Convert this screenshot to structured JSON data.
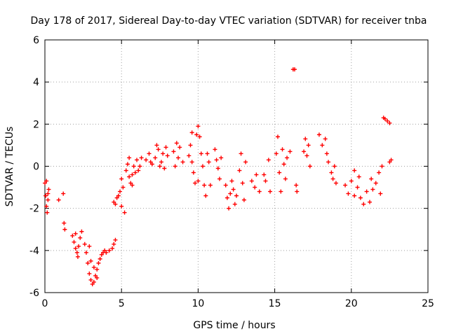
{
  "chart_data": {
    "type": "scatter",
    "title": "Day 178 of 2017, Sidereal Day-to-day VTEC variation (SDTVAR) for receiver tnba",
    "xlabel": "GPS time / hours",
    "ylabel": "SDTVAR / TECUs",
    "xlim": [
      0,
      25
    ],
    "ylim": [
      -6,
      6
    ],
    "xticks": [
      0,
      5,
      10,
      15,
      20,
      25
    ],
    "yticks": [
      -6,
      -4,
      -2,
      0,
      2,
      4,
      6
    ],
    "xtick_labels": [
      "0",
      "5",
      "10",
      "15",
      "20",
      "25"
    ],
    "ytick_labels": [
      "-6",
      "-4",
      "-2",
      "0",
      "2",
      "4",
      "6"
    ],
    "grid": true,
    "marker": "+",
    "color": "#ff0000",
    "series": [
      {
        "name": "SDTVAR",
        "points": [
          [
            0.0,
            -0.8
          ],
          [
            0.05,
            -1.4
          ],
          [
            0.1,
            -1.9
          ],
          [
            0.15,
            -2.2
          ],
          [
            0.2,
            -1.6
          ],
          [
            0.25,
            -1.1
          ],
          [
            0.1,
            -0.7
          ],
          [
            0.2,
            -1.3
          ],
          [
            0.9,
            -1.6
          ],
          [
            1.2,
            -1.3
          ],
          [
            1.25,
            -2.7
          ],
          [
            1.3,
            -3.0
          ],
          [
            1.8,
            -3.3
          ],
          [
            1.9,
            -3.6
          ],
          [
            2.0,
            -3.9
          ],
          [
            2.1,
            -4.1
          ],
          [
            2.2,
            -3.8
          ],
          [
            2.3,
            -3.4
          ],
          [
            2.4,
            -3.1
          ],
          [
            2.0,
            -3.2
          ],
          [
            2.15,
            -4.3
          ],
          [
            2.6,
            -3.7
          ],
          [
            2.7,
            -4.1
          ],
          [
            2.8,
            -4.6
          ],
          [
            2.9,
            -5.1
          ],
          [
            3.0,
            -5.4
          ],
          [
            3.1,
            -5.6
          ],
          [
            3.2,
            -5.5
          ],
          [
            3.3,
            -5.2
          ],
          [
            3.4,
            -4.9
          ],
          [
            3.5,
            -4.6
          ],
          [
            3.6,
            -4.4
          ],
          [
            3.7,
            -4.2
          ],
          [
            3.8,
            -4.1
          ],
          [
            3.9,
            -4.0
          ],
          [
            4.0,
            -4.1
          ],
          [
            4.2,
            -4.0
          ],
          [
            4.4,
            -3.9
          ],
          [
            4.5,
            -3.7
          ],
          [
            4.6,
            -3.5
          ],
          [
            3.0,
            -4.5
          ],
          [
            3.2,
            -4.8
          ],
          [
            2.9,
            -3.8
          ],
          [
            3.4,
            -5.3
          ],
          [
            4.5,
            -1.7
          ],
          [
            4.6,
            -1.8
          ],
          [
            4.7,
            -1.5
          ],
          [
            4.9,
            -1.2
          ],
          [
            5.0,
            -1.9
          ],
          [
            5.1,
            -1.0
          ],
          [
            5.2,
            -2.2
          ],
          [
            5.0,
            -0.6
          ],
          [
            4.8,
            -1.4
          ],
          [
            5.3,
            -0.2
          ],
          [
            5.4,
            0.1
          ],
          [
            5.5,
            -0.5
          ],
          [
            5.6,
            -0.8
          ],
          [
            5.7,
            -0.4
          ],
          [
            5.8,
            0.0
          ],
          [
            5.9,
            -0.3
          ],
          [
            6.0,
            0.3
          ],
          [
            6.1,
            -0.2
          ],
          [
            6.2,
            0.0
          ],
          [
            6.3,
            0.4
          ],
          [
            5.5,
            0.4
          ],
          [
            5.7,
            -0.9
          ],
          [
            6.6,
            0.3
          ],
          [
            6.8,
            0.6
          ],
          [
            7.0,
            0.1
          ],
          [
            7.2,
            0.4
          ],
          [
            7.4,
            0.8
          ],
          [
            7.6,
            0.2
          ],
          [
            7.8,
            -0.1
          ],
          [
            8.0,
            0.5
          ],
          [
            7.3,
            1.0
          ],
          [
            7.5,
            0.0
          ],
          [
            7.7,
            0.6
          ],
          [
            6.9,
            0.2
          ],
          [
            7.9,
            0.9
          ],
          [
            8.4,
            0.7
          ],
          [
            8.6,
            1.1
          ],
          [
            8.7,
            0.4
          ],
          [
            8.8,
            0.9
          ],
          [
            9.0,
            0.2
          ],
          [
            8.5,
            0.0
          ],
          [
            9.4,
            0.5
          ],
          [
            9.5,
            1.0
          ],
          [
            9.6,
            0.2
          ],
          [
            9.7,
            -0.3
          ],
          [
            9.8,
            -0.8
          ],
          [
            9.9,
            1.5
          ],
          [
            10.0,
            1.9
          ],
          [
            10.1,
            1.4
          ],
          [
            10.2,
            0.6
          ],
          [
            9.6,
            1.6
          ],
          [
            10.0,
            -0.7
          ],
          [
            10.3,
            0.0
          ],
          [
            10.4,
            -0.9
          ],
          [
            10.5,
            -1.4
          ],
          [
            10.6,
            0.6
          ],
          [
            10.7,
            0.2
          ],
          [
            10.8,
            -0.9
          ],
          [
            11.1,
            0.8
          ],
          [
            11.2,
            0.3
          ],
          [
            11.3,
            -0.1
          ],
          [
            11.4,
            -0.6
          ],
          [
            11.5,
            0.4
          ],
          [
            11.8,
            -0.9
          ],
          [
            11.9,
            -1.5
          ],
          [
            12.0,
            -2.0
          ],
          [
            12.1,
            -1.3
          ],
          [
            12.2,
            -0.7
          ],
          [
            12.3,
            -1.1
          ],
          [
            12.4,
            -1.8
          ],
          [
            12.5,
            -1.4
          ],
          [
            12.7,
            -0.2
          ],
          [
            12.8,
            0.6
          ],
          [
            12.9,
            -0.8
          ],
          [
            13.0,
            -1.6
          ],
          [
            13.1,
            0.2
          ],
          [
            13.5,
            -0.7
          ],
          [
            13.7,
            -1.0
          ],
          [
            13.8,
            -0.4
          ],
          [
            14.0,
            -1.2
          ],
          [
            14.3,
            -0.4
          ],
          [
            14.4,
            -0.7
          ],
          [
            14.6,
            0.3
          ],
          [
            14.7,
            -1.2
          ],
          [
            15.1,
            0.6
          ],
          [
            15.2,
            1.4
          ],
          [
            15.3,
            -0.3
          ],
          [
            15.4,
            -1.2
          ],
          [
            15.5,
            0.8
          ],
          [
            15.6,
            0.1
          ],
          [
            15.7,
            -0.6
          ],
          [
            15.8,
            0.4
          ],
          [
            16.0,
            0.7
          ],
          [
            16.2,
            4.6
          ],
          [
            16.3,
            4.6
          ],
          [
            16.4,
            -0.9
          ],
          [
            16.45,
            -1.2
          ],
          [
            16.9,
            0.7
          ],
          [
            17.0,
            1.3
          ],
          [
            17.1,
            0.5
          ],
          [
            17.2,
            1.0
          ],
          [
            17.3,
            0.0
          ],
          [
            17.9,
            1.5
          ],
          [
            18.1,
            1.0
          ],
          [
            18.3,
            1.3
          ],
          [
            18.4,
            0.6
          ],
          [
            18.5,
            0.2
          ],
          [
            18.7,
            -0.3
          ],
          [
            18.8,
            -0.6
          ],
          [
            18.9,
            0.0
          ],
          [
            19.0,
            -0.8
          ],
          [
            19.6,
            -0.9
          ],
          [
            19.8,
            -1.3
          ],
          [
            20.0,
            -0.7
          ],
          [
            20.2,
            -1.4
          ],
          [
            20.4,
            -1.0
          ],
          [
            20.6,
            -1.5
          ],
          [
            20.8,
            -1.8
          ],
          [
            21.0,
            -1.2
          ],
          [
            21.2,
            -1.7
          ],
          [
            21.4,
            -1.1
          ],
          [
            21.6,
            -0.8
          ],
          [
            21.8,
            -0.3
          ],
          [
            22.0,
            0.0
          ],
          [
            20.2,
            -0.2
          ],
          [
            20.5,
            -0.5
          ],
          [
            21.3,
            -0.6
          ],
          [
            21.9,
            -1.3
          ],
          [
            22.1,
            2.3
          ],
          [
            22.2,
            2.25
          ],
          [
            22.35,
            2.15
          ],
          [
            22.5,
            2.05
          ],
          [
            22.6,
            0.3
          ],
          [
            22.5,
            0.2
          ]
        ]
      }
    ]
  }
}
